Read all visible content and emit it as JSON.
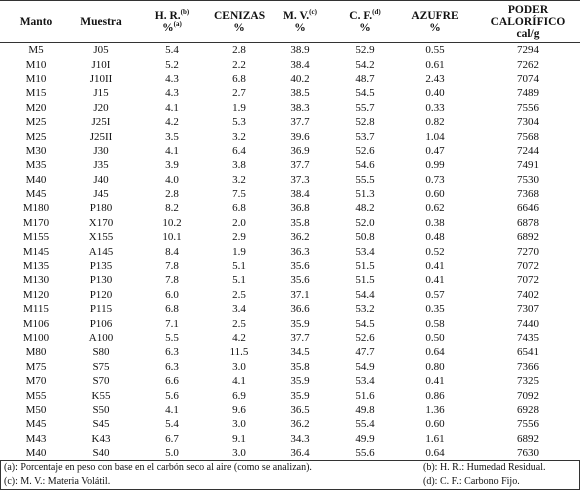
{
  "table": {
    "header": [
      {
        "lines": [
          "Manto"
        ]
      },
      {
        "lines": [
          "Muestra"
        ]
      },
      {
        "lines": [
          "H. R."
        ],
        "sup": "(b)",
        "unit": "%",
        "unit_sup": "(a)"
      },
      {
        "lines": [
          "CENIZAS"
        ],
        "unit": "%"
      },
      {
        "lines": [
          "M. V."
        ],
        "sup": "(c)",
        "unit": "%"
      },
      {
        "lines": [
          "C. F."
        ],
        "sup": "(d)",
        "unit": "%"
      },
      {
        "lines": [
          "AZUFRE"
        ],
        "unit": "%"
      },
      {
        "lines": [
          "PODER",
          "CALORÍFICO"
        ],
        "unit": "cal/g"
      }
    ],
    "rows": [
      [
        "M5",
        "J05",
        "5.4",
        "2.8",
        "38.9",
        "52.9",
        "0.55",
        "7294"
      ],
      [
        "M10",
        "J10I",
        "5.2",
        "2.2",
        "38.4",
        "54.2",
        "0.61",
        "7262"
      ],
      [
        "M10",
        "J10II",
        "4.3",
        "6.8",
        "40.2",
        "48.7",
        "2.43",
        "7074"
      ],
      [
        "M15",
        "J15",
        "4.3",
        "2.7",
        "38.5",
        "54.5",
        "0.40",
        "7489"
      ],
      [
        "M20",
        "J20",
        "4.1",
        "1.9",
        "38.3",
        "55.7",
        "0.33",
        "7556"
      ],
      [
        "M25",
        "J25I",
        "4.2",
        "5.3",
        "37.7",
        "52.8",
        "0.82",
        "7304"
      ],
      [
        "M25",
        "J25II",
        "3.5",
        "3.2",
        "39.6",
        "53.7",
        "1.04",
        "7568"
      ],
      [
        "M30",
        "J30",
        "4.1",
        "6.4",
        "36.9",
        "52.6",
        "0.47",
        "7244"
      ],
      [
        "M35",
        "J35",
        "3.9",
        "3.8",
        "37.7",
        "54.6",
        "0.99",
        "7491"
      ],
      [
        "M40",
        "J40",
        "4.0",
        "3.2",
        "37.3",
        "55.5",
        "0.73",
        "7530"
      ],
      [
        "M45",
        "J45",
        "2.8",
        "7.5",
        "38.4",
        "51.3",
        "0.60",
        "7368"
      ],
      [
        "M180",
        "P180",
        "8.2",
        "6.8",
        "36.8",
        "48.2",
        "0.62",
        "6646"
      ],
      [
        "M170",
        "X170",
        "10.2",
        "2.0",
        "35.8",
        "52.0",
        "0.38",
        "6878"
      ],
      [
        "M155",
        "X155",
        "10.1",
        "2.9",
        "36.2",
        "50.8",
        "0.48",
        "6892"
      ],
      [
        "M145",
        "A145",
        "8.4",
        "1.9",
        "36.3",
        "53.4",
        "0.52",
        "7270"
      ],
      [
        "M135",
        "P135",
        "7.8",
        "5.1",
        "35.6",
        "51.5",
        "0.41",
        "7072"
      ],
      [
        "M130",
        "P130",
        "7.8",
        "5.1",
        "35.6",
        "51.5",
        "0.41",
        "7072"
      ],
      [
        "M120",
        "P120",
        "6.0",
        "2.5",
        "37.1",
        "54.4",
        "0.57",
        "7402"
      ],
      [
        "M115",
        "P115",
        "6.8",
        "3.4",
        "36.6",
        "53.2",
        "0.35",
        "7307"
      ],
      [
        "M106",
        "P106",
        "7.1",
        "2.5",
        "35.9",
        "54.5",
        "0.58",
        "7440"
      ],
      [
        "M100",
        "A100",
        "5.5",
        "4.2",
        "37.7",
        "52.6",
        "0.50",
        "7435"
      ],
      [
        "M80",
        "S80",
        "6.3",
        "11.5",
        "34.5",
        "47.7",
        "0.64",
        "6541"
      ],
      [
        "M75",
        "S75",
        "6.3",
        "3.0",
        "35.8",
        "54.9",
        "0.80",
        "7366"
      ],
      [
        "M70",
        "S70",
        "6.6",
        "4.1",
        "35.9",
        "53.4",
        "0.41",
        "7325"
      ],
      [
        "M55",
        "K55",
        "5.6",
        "6.9",
        "35.9",
        "51.6",
        "0.86",
        "7092"
      ],
      [
        "M50",
        "S50",
        "4.1",
        "9.6",
        "36.5",
        "49.8",
        "1.36",
        "6928"
      ],
      [
        "M45",
        "S45",
        "5.4",
        "3.0",
        "36.2",
        "55.4",
        "0.60",
        "7556"
      ],
      [
        "M43",
        "K43",
        "6.7",
        "9.1",
        "34.3",
        "49.9",
        "1.61",
        "6892"
      ],
      [
        "M40",
        "S40",
        "5.0",
        "3.0",
        "36.4",
        "55.6",
        "0.64",
        "7630"
      ]
    ]
  },
  "footnotes": [
    [
      "(a): Porcentaje en peso con base en el carbón seco al aire (como se analizan).",
      "(b): H. R.: Humedad Residual."
    ],
    [
      "(c): M. V.: Materia Volátil.",
      "(d): C. F.: Carbono Fijo."
    ]
  ]
}
